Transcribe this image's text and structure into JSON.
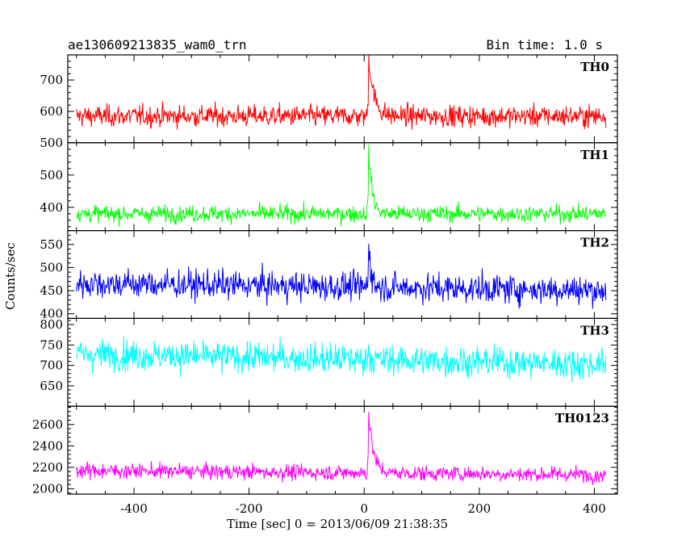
{
  "header": {
    "title": "ae130609213835_wam0_trn",
    "bin_time": "Bin time: 1.0 s"
  },
  "axes": {
    "xlabel": "Time [sec] 0 = 2013/06/09 21:38:35",
    "ylabel": "Counts/sec"
  },
  "chart_data": {
    "type": "line",
    "title": "ae130609213835_wam0_trn",
    "xlabel": "Time [sec] 0 = 2013/06/09 21:38:35",
    "ylabel": "Counts/sec",
    "xlim": [
      -515,
      440
    ],
    "x_ticks": [
      -400,
      -200,
      0,
      200,
      400
    ],
    "x_range": [
      -500,
      420
    ],
    "burst_time": 8,
    "series": [
      {
        "name": "TH0",
        "color": "#ff0000",
        "ylim": [
          500,
          780
        ],
        "y_ticks": [
          500,
          600,
          700
        ],
        "baseline": 585,
        "noise": 24,
        "peak": 190,
        "decay": 9,
        "trend": 0
      },
      {
        "name": "TH1",
        "color": "#00ff00",
        "ylim": [
          328,
          600
        ],
        "y_ticks": [
          400,
          500
        ],
        "baseline": 380,
        "noise": 18,
        "peak": 200,
        "decay": 6,
        "trend": 0
      },
      {
        "name": "TH2",
        "color": "#0000ff",
        "ylim": [
          390,
          580
        ],
        "y_ticks": [
          400,
          450,
          500,
          550
        ],
        "baseline": 466,
        "noise": 22,
        "peak": 100,
        "decay": 4,
        "trend": -15
      },
      {
        "name": "TH3",
        "color": "#00ffff",
        "ylim": [
          600,
          815
        ],
        "y_ticks": [
          650,
          700,
          750,
          800
        ],
        "baseline": 728,
        "noise": 26,
        "peak": 40,
        "decay": 2,
        "trend": -25
      },
      {
        "name": "TH0123",
        "color": "#ff00ff",
        "ylim": [
          1950,
          2770
        ],
        "y_ticks": [
          2000,
          2200,
          2400,
          2600
        ],
        "baseline": 2170,
        "noise": 50,
        "peak": 560,
        "decay": 8,
        "trend": -40
      }
    ]
  }
}
